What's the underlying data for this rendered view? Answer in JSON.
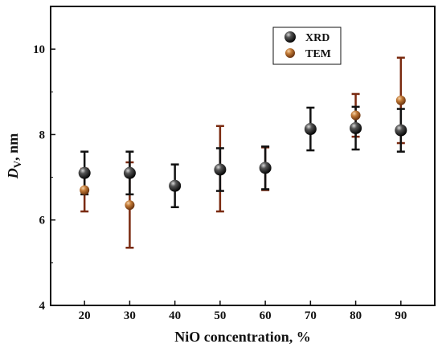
{
  "chart_data": {
    "type": "scatter",
    "title": "",
    "xlabel": "NiO concentration, %",
    "ylabel_main": "D",
    "ylabel_sub": "V",
    "ylabel_unit": ", nm",
    "xlim": [
      12.5,
      97.5
    ],
    "ylim": [
      4,
      11
    ],
    "x_ticks": [
      20,
      30,
      40,
      50,
      60,
      70,
      80,
      90
    ],
    "y_ticks": [
      4,
      6,
      8,
      10
    ],
    "grid": false,
    "legend_position": "top-right",
    "series": [
      {
        "name": "XRD",
        "color": "#111111",
        "error_color": "#111111",
        "points": [
          {
            "x": 20,
            "y": 7.1,
            "err": 0.5
          },
          {
            "x": 30,
            "y": 7.1,
            "err": 0.5
          },
          {
            "x": 40,
            "y": 6.8,
            "err": 0.5
          },
          {
            "x": 50,
            "y": 7.18,
            "err": 0.5
          },
          {
            "x": 60,
            "y": 7.22,
            "err": 0.5
          },
          {
            "x": 70,
            "y": 8.13,
            "err": 0.5
          },
          {
            "x": 80,
            "y": 8.15,
            "err": 0.5
          },
          {
            "x": 90,
            "y": 8.1,
            "err": 0.5
          }
        ]
      },
      {
        "name": "TEM",
        "color": "#b5651d",
        "error_color": "#7a2a10",
        "points": [
          {
            "x": 20,
            "y": 6.7,
            "err": 0.5
          },
          {
            "x": 30,
            "y": 6.35,
            "err": 1.0
          },
          {
            "x": 50,
            "y": 7.2,
            "err": 1.0
          },
          {
            "x": 60,
            "y": 7.2,
            "err": 0.5
          },
          {
            "x": 80,
            "y": 8.45,
            "err": 0.5
          },
          {
            "x": 90,
            "y": 8.8,
            "err": 1.0
          }
        ]
      }
    ]
  }
}
